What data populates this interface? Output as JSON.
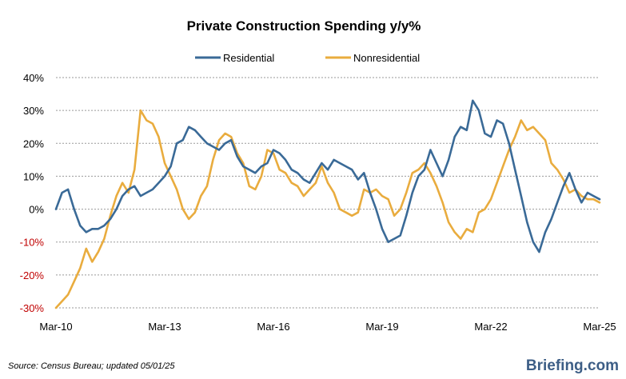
{
  "chart_data": {
    "type": "line",
    "title": "Private Construction Spending y/y%",
    "xlabel": "",
    "ylabel": "",
    "ylim": [
      -30,
      40
    ],
    "yticks": [
      40,
      30,
      20,
      10,
      0,
      -10,
      -20,
      -30
    ],
    "ytick_labels": [
      "40%",
      "30%",
      "20%",
      "10%",
      "0%",
      "-10%",
      "-20%",
      "-30%"
    ],
    "negative_tick_color": "#c00000",
    "xlim": [
      "2010-03",
      "2025-03"
    ],
    "xtick_labels": [
      "Mar-10",
      "Mar-13",
      "Mar-16",
      "Mar-19",
      "Mar-22",
      "Mar-25"
    ],
    "xtick_positions": [
      "2010-03",
      "2013-03",
      "2016-03",
      "2019-03",
      "2022-03",
      "2025-03"
    ],
    "grid": true,
    "legend_placement": "top-center",
    "series": [
      {
        "name": "Residential",
        "color": "#3a6a97",
        "points": [
          [
            "2010-03",
            0
          ],
          [
            "2010-05",
            5
          ],
          [
            "2010-07",
            6
          ],
          [
            "2010-09",
            0
          ],
          [
            "2010-11",
            -5
          ],
          [
            "2011-01",
            -7
          ],
          [
            "2011-03",
            -6
          ],
          [
            "2011-05",
            -6
          ],
          [
            "2011-07",
            -5
          ],
          [
            "2011-09",
            -3
          ],
          [
            "2011-11",
            0
          ],
          [
            "2012-01",
            4
          ],
          [
            "2012-03",
            6
          ],
          [
            "2012-05",
            7
          ],
          [
            "2012-07",
            4
          ],
          [
            "2012-09",
            5
          ],
          [
            "2012-11",
            6
          ],
          [
            "2013-01",
            8
          ],
          [
            "2013-03",
            10
          ],
          [
            "2013-05",
            13
          ],
          [
            "2013-07",
            20
          ],
          [
            "2013-09",
            21
          ],
          [
            "2013-11",
            25
          ],
          [
            "2014-01",
            24
          ],
          [
            "2014-03",
            22
          ],
          [
            "2014-05",
            20
          ],
          [
            "2014-07",
            19
          ],
          [
            "2014-09",
            18
          ],
          [
            "2014-11",
            20
          ],
          [
            "2015-01",
            21
          ],
          [
            "2015-03",
            16
          ],
          [
            "2015-05",
            13
          ],
          [
            "2015-07",
            12
          ],
          [
            "2015-09",
            11
          ],
          [
            "2015-11",
            13
          ],
          [
            "2016-01",
            14
          ],
          [
            "2016-03",
            18
          ],
          [
            "2016-05",
            17
          ],
          [
            "2016-07",
            15
          ],
          [
            "2016-09",
            12
          ],
          [
            "2016-11",
            11
          ],
          [
            "2017-01",
            9
          ],
          [
            "2017-03",
            8
          ],
          [
            "2017-05",
            11
          ],
          [
            "2017-07",
            14
          ],
          [
            "2017-09",
            12
          ],
          [
            "2017-11",
            15
          ],
          [
            "2018-01",
            14
          ],
          [
            "2018-03",
            13
          ],
          [
            "2018-05",
            12
          ],
          [
            "2018-07",
            9
          ],
          [
            "2018-09",
            11
          ],
          [
            "2018-11",
            5
          ],
          [
            "2019-01",
            0
          ],
          [
            "2019-03",
            -6
          ],
          [
            "2019-05",
            -10
          ],
          [
            "2019-07",
            -9
          ],
          [
            "2019-09",
            -8
          ],
          [
            "2019-11",
            -2
          ],
          [
            "2020-01",
            5
          ],
          [
            "2020-03",
            10
          ],
          [
            "2020-05",
            12
          ],
          [
            "2020-07",
            18
          ],
          [
            "2020-09",
            14
          ],
          [
            "2020-11",
            10
          ],
          [
            "2021-01",
            15
          ],
          [
            "2021-03",
            22
          ],
          [
            "2021-05",
            25
          ],
          [
            "2021-07",
            24
          ],
          [
            "2021-09",
            33
          ],
          [
            "2021-11",
            30
          ],
          [
            "2022-01",
            23
          ],
          [
            "2022-03",
            22
          ],
          [
            "2022-05",
            27
          ],
          [
            "2022-07",
            26
          ],
          [
            "2022-09",
            20
          ],
          [
            "2022-11",
            12
          ],
          [
            "2023-01",
            4
          ],
          [
            "2023-03",
            -4
          ],
          [
            "2023-05",
            -10
          ],
          [
            "2023-07",
            -13
          ],
          [
            "2023-09",
            -7
          ],
          [
            "2023-11",
            -3
          ],
          [
            "2024-01",
            2
          ],
          [
            "2024-03",
            7
          ],
          [
            "2024-05",
            11
          ],
          [
            "2024-07",
            6
          ],
          [
            "2024-09",
            2
          ],
          [
            "2024-11",
            5
          ],
          [
            "2025-01",
            4
          ],
          [
            "2025-03",
            3
          ]
        ]
      },
      {
        "name": "Nonresidential",
        "color": "#e9ac3e",
        "points": [
          [
            "2010-03",
            -30
          ],
          [
            "2010-05",
            -28
          ],
          [
            "2010-07",
            -26
          ],
          [
            "2010-09",
            -22
          ],
          [
            "2010-11",
            -18
          ],
          [
            "2011-01",
            -12
          ],
          [
            "2011-03",
            -16
          ],
          [
            "2011-05",
            -13
          ],
          [
            "2011-07",
            -9
          ],
          [
            "2011-09",
            -2
          ],
          [
            "2011-11",
            4
          ],
          [
            "2012-01",
            8
          ],
          [
            "2012-03",
            5
          ],
          [
            "2012-05",
            12
          ],
          [
            "2012-07",
            30
          ],
          [
            "2012-09",
            27
          ],
          [
            "2012-11",
            26
          ],
          [
            "2013-01",
            22
          ],
          [
            "2013-03",
            14
          ],
          [
            "2013-05",
            10
          ],
          [
            "2013-07",
            6
          ],
          [
            "2013-09",
            0
          ],
          [
            "2013-11",
            -3
          ],
          [
            "2014-01",
            -1
          ],
          [
            "2014-03",
            4
          ],
          [
            "2014-05",
            7
          ],
          [
            "2014-07",
            15
          ],
          [
            "2014-09",
            21
          ],
          [
            "2014-11",
            23
          ],
          [
            "2015-01",
            22
          ],
          [
            "2015-03",
            17
          ],
          [
            "2015-05",
            14
          ],
          [
            "2015-07",
            7
          ],
          [
            "2015-09",
            6
          ],
          [
            "2015-11",
            10
          ],
          [
            "2016-01",
            18
          ],
          [
            "2016-03",
            17
          ],
          [
            "2016-05",
            12
          ],
          [
            "2016-07",
            11
          ],
          [
            "2016-09",
            8
          ],
          [
            "2016-11",
            7
          ],
          [
            "2017-01",
            4
          ],
          [
            "2017-03",
            6
          ],
          [
            "2017-05",
            8
          ],
          [
            "2017-07",
            13
          ],
          [
            "2017-09",
            8
          ],
          [
            "2017-11",
            5
          ],
          [
            "2018-01",
            0
          ],
          [
            "2018-03",
            -1
          ],
          [
            "2018-05",
            -2
          ],
          [
            "2018-07",
            -1
          ],
          [
            "2018-09",
            6
          ],
          [
            "2018-11",
            5
          ],
          [
            "2019-01",
            6
          ],
          [
            "2019-03",
            4
          ],
          [
            "2019-05",
            3
          ],
          [
            "2019-07",
            -2
          ],
          [
            "2019-09",
            0
          ],
          [
            "2019-11",
            5
          ],
          [
            "2020-01",
            11
          ],
          [
            "2020-03",
            12
          ],
          [
            "2020-05",
            14
          ],
          [
            "2020-07",
            11
          ],
          [
            "2020-09",
            7
          ],
          [
            "2020-11",
            2
          ],
          [
            "2021-01",
            -4
          ],
          [
            "2021-03",
            -7
          ],
          [
            "2021-05",
            -9
          ],
          [
            "2021-07",
            -6
          ],
          [
            "2021-09",
            -7
          ],
          [
            "2021-11",
            -1
          ],
          [
            "2022-01",
            0
          ],
          [
            "2022-03",
            3
          ],
          [
            "2022-05",
            8
          ],
          [
            "2022-07",
            13
          ],
          [
            "2022-09",
            18
          ],
          [
            "2022-11",
            22
          ],
          [
            "2023-01",
            27
          ],
          [
            "2023-03",
            24
          ],
          [
            "2023-05",
            25
          ],
          [
            "2023-07",
            23
          ],
          [
            "2023-09",
            21
          ],
          [
            "2023-11",
            14
          ],
          [
            "2024-01",
            12
          ],
          [
            "2024-03",
            9
          ],
          [
            "2024-05",
            5
          ],
          [
            "2024-07",
            6
          ],
          [
            "2024-09",
            4
          ],
          [
            "2024-11",
            3
          ],
          [
            "2025-01",
            3
          ],
          [
            "2025-03",
            2
          ]
        ]
      }
    ]
  },
  "footer": {
    "source": "Source:  Census Bureau;  updated  05/01/25",
    "brand": "Briefing.com"
  }
}
